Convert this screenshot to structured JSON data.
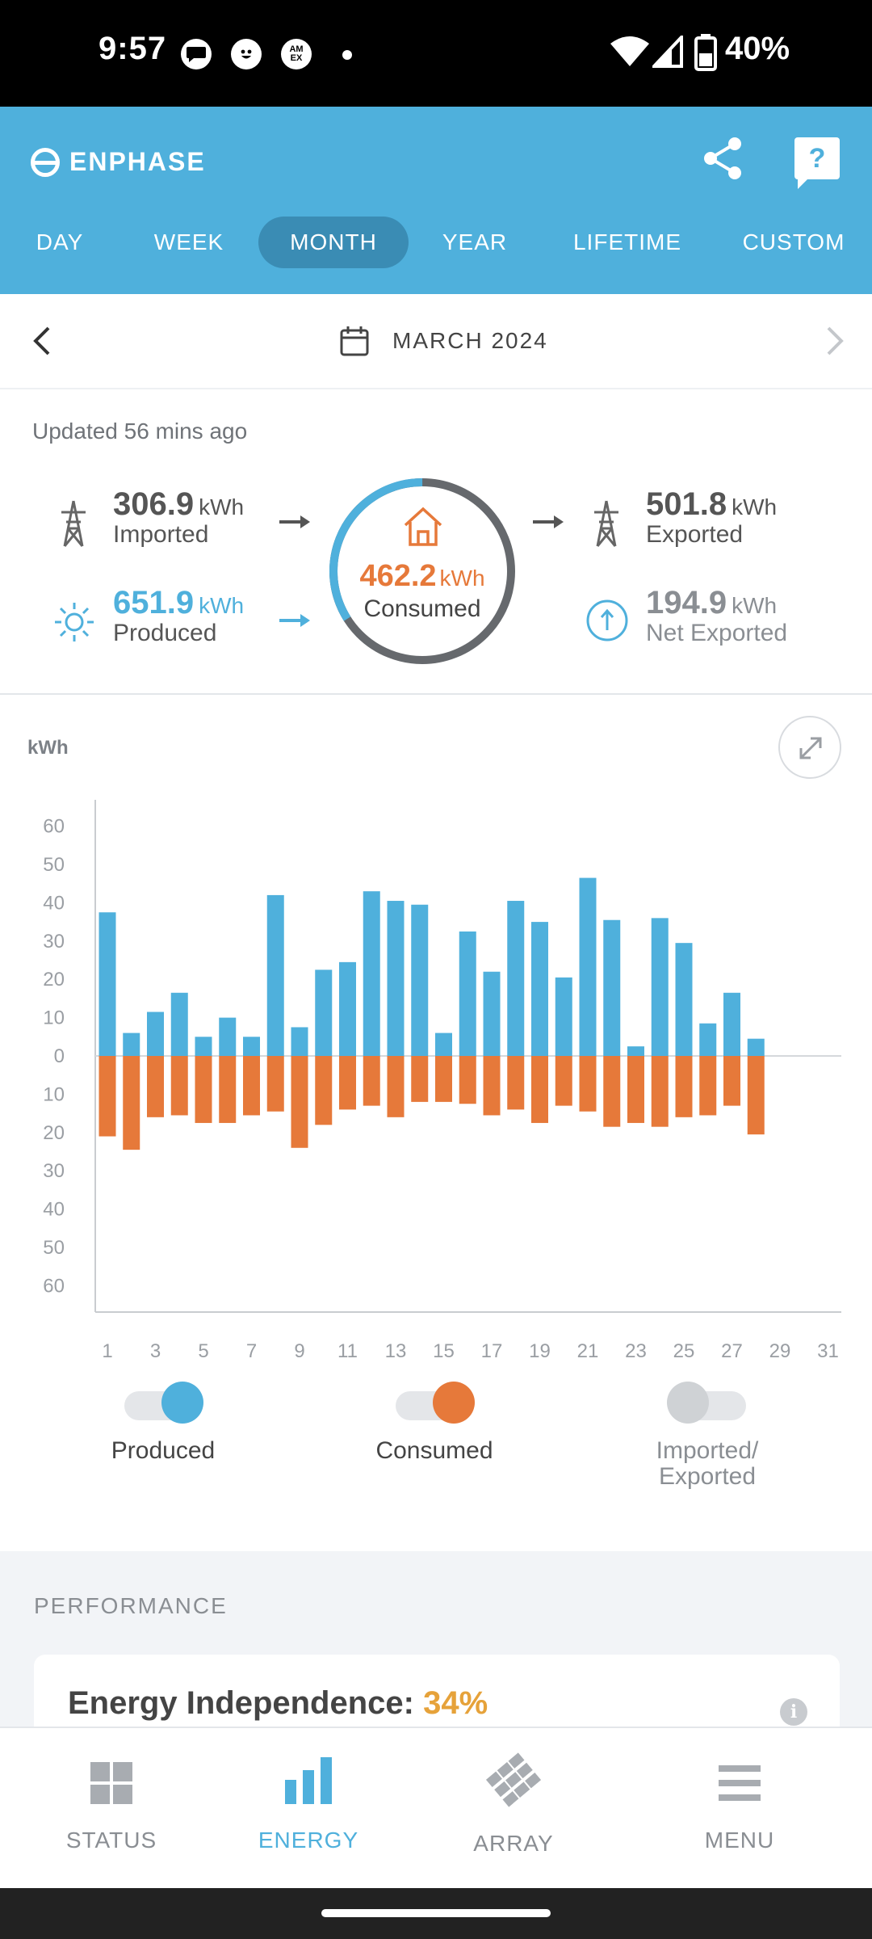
{
  "status_bar": {
    "time": "9:57",
    "battery": "40%",
    "notification_icons": [
      "message-icon",
      "face-icon",
      "amex-icon"
    ],
    "amex_text": "AM EX"
  },
  "header": {
    "logo": "ENPHASE",
    "help_label": "?",
    "tabs": [
      {
        "label": "DAY",
        "active": false
      },
      {
        "label": "WEEK",
        "active": false
      },
      {
        "label": "MONTH",
        "active": true
      },
      {
        "label": "YEAR",
        "active": false
      },
      {
        "label": "LIFETIME",
        "active": false
      },
      {
        "label": "CUSTOM",
        "active": false
      }
    ]
  },
  "date_nav": {
    "period": "MARCH 2024"
  },
  "summary": {
    "updated": "Updated 56 mins ago",
    "imported": {
      "value": "306.9",
      "unit": "kWh",
      "label": "Imported"
    },
    "produced": {
      "value": "651.9",
      "unit": "kWh",
      "label": "Produced"
    },
    "consumed": {
      "value": "462.2",
      "unit": "kWh",
      "label": "Consumed"
    },
    "exported": {
      "value": "501.8",
      "unit": "kWh",
      "label": "Exported"
    },
    "net_exported": {
      "value": "194.9",
      "unit": "kWh",
      "label": "Net Exported"
    },
    "ring_produced_fraction": 0.34
  },
  "chart": {
    "unit_label": "kWh",
    "legend": [
      {
        "label": "Produced",
        "on": true,
        "color": "#4fb0dc"
      },
      {
        "label": "Consumed",
        "on": true,
        "color": "#e6793a"
      },
      {
        "label": "Imported/ Exported",
        "on": false,
        "color": "#cfd2d5"
      }
    ]
  },
  "chart_data": {
    "type": "bar",
    "ylabel": "kWh",
    "ylim": [
      -60,
      60
    ],
    "y_tick_labels": [
      "60",
      "50",
      "40",
      "30",
      "20",
      "10",
      "0",
      "10",
      "20",
      "30",
      "40",
      "50",
      "60"
    ],
    "x_tick_labels": [
      "1",
      "3",
      "5",
      "7",
      "9",
      "11",
      "13",
      "15",
      "17",
      "19",
      "21",
      "23",
      "25",
      "27",
      "29",
      "31"
    ],
    "categories": [
      "1",
      "2",
      "3",
      "4",
      "5",
      "6",
      "7",
      "8",
      "9",
      "10",
      "11",
      "12",
      "13",
      "14",
      "15",
      "16",
      "17",
      "18",
      "19",
      "20",
      "21",
      "22",
      "23",
      "24",
      "25",
      "26",
      "27",
      "28",
      "29",
      "30",
      "31"
    ],
    "series": [
      {
        "name": "Produced",
        "color": "#4fb0dc",
        "values": [
          37.5,
          6,
          11.5,
          16.5,
          5,
          10,
          5,
          42,
          7.5,
          22.5,
          24.5,
          43,
          40.5,
          39.5,
          6,
          32.5,
          22,
          40.5,
          35,
          20.5,
          46.5,
          35.5,
          2.5,
          36,
          29.5,
          8.5,
          16.5,
          4.5,
          null,
          null,
          null
        ]
      },
      {
        "name": "Consumed",
        "color": "#e6793a",
        "values": [
          -21,
          -24.5,
          -16,
          -15.5,
          -17.5,
          -17.5,
          -15.5,
          -14.5,
          -24,
          -18,
          -14,
          -13,
          -16,
          -12,
          -12,
          -12.5,
          -15.5,
          -14,
          -17.5,
          -13,
          -14.5,
          -18.5,
          -17.5,
          -18.5,
          -16,
          -15.5,
          -13,
          -20.5,
          null,
          null,
          null
        ]
      }
    ],
    "grid": false,
    "legend_position": "bottom"
  },
  "performance": {
    "title": "PERFORMANCE",
    "card_label": "Energy Independence:",
    "card_value": "34%",
    "info_label": "i"
  },
  "bottom_nav": [
    {
      "label": "STATUS",
      "active": false
    },
    {
      "label": "ENERGY",
      "active": true
    },
    {
      "label": "ARRAY",
      "active": false
    },
    {
      "label": "MENU",
      "active": false
    }
  ]
}
